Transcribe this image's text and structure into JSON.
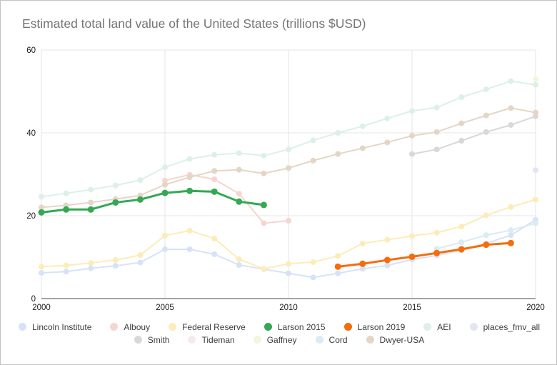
{
  "window": {
    "background": "#ffffff",
    "border_color": "#c4c4c4"
  },
  "chart_data": {
    "type": "line",
    "title": "Estimated total land value of the United States (trillions $USD)",
    "title_color": "#757575",
    "xlabel": "",
    "ylabel": "",
    "xlim": [
      2000,
      2020
    ],
    "ylim": [
      0,
      60
    ],
    "x_ticks": [
      "2000",
      "2005",
      "2010",
      "2015",
      "2020"
    ],
    "x_tick_values": [
      2000,
      2005,
      2010,
      2015,
      2020
    ],
    "y_ticks": [
      "0",
      "20",
      "40",
      "60"
    ],
    "y_tick_values": [
      0,
      20,
      40,
      60
    ],
    "grid": true,
    "grid_color": "#e6e6e6",
    "baseline_color": "#4a4a4a",
    "tick_label_color": "#1a1a1a",
    "legend_position": "bottom",
    "series": [
      {
        "name": "Lincoln Institute",
        "color": "#d7e2f8",
        "emphasis": false,
        "x": [
          2000,
          2001,
          2002,
          2003,
          2004,
          2005,
          2006,
          2007,
          2008,
          2009,
          2010,
          2011,
          2012,
          2013,
          2014,
          2015,
          2016,
          2017,
          2018,
          2019,
          2020
        ],
        "values": [
          6.2,
          6.5,
          7.3,
          7.9,
          8.7,
          11.9,
          11.9,
          10.7,
          8.1,
          7.1,
          6.1,
          5.1,
          6.1,
          7.2,
          8.0,
          9.4,
          10.4,
          11.7,
          13.3,
          15.3,
          19.0
        ]
      },
      {
        "name": "Albouy",
        "color": "#f6d5d0",
        "emphasis": false,
        "x": [
          2005,
          2006,
          2007,
          2008,
          2009,
          2010
        ],
        "values": [
          28.5,
          29.9,
          28.8,
          25.3,
          18.2,
          18.8
        ]
      },
      {
        "name": "Federal Reserve",
        "color": "#fcecb8",
        "emphasis": false,
        "x": [
          2000,
          2001,
          2002,
          2003,
          2004,
          2005,
          2006,
          2007,
          2008,
          2009,
          2010,
          2011,
          2012,
          2013,
          2014,
          2015,
          2016,
          2017,
          2018,
          2019,
          2020
        ],
        "values": [
          7.7,
          8.0,
          8.6,
          9.3,
          10.5,
          15.2,
          16.4,
          14.5,
          9.5,
          7.2,
          8.4,
          8.8,
          10.3,
          13.3,
          14.2,
          15.1,
          15.9,
          17.4,
          20.1,
          22.1,
          23.9
        ]
      },
      {
        "name": "Larson 2015",
        "color": "#34a853",
        "emphasis": true,
        "x": [
          2000,
          2001,
          2002,
          2003,
          2004,
          2005,
          2006,
          2007,
          2008,
          2009
        ],
        "values": [
          20.8,
          21.5,
          21.5,
          23.2,
          23.9,
          25.5,
          26.0,
          25.8,
          23.4,
          22.6
        ]
      },
      {
        "name": "Larson 2019",
        "color": "#f56c0a",
        "emphasis": true,
        "x": [
          2012,
          2013,
          2014,
          2015,
          2016,
          2017,
          2018,
          2019
        ],
        "values": [
          7.7,
          8.4,
          9.3,
          10.1,
          11.0,
          11.9,
          13.0,
          13.4
        ]
      },
      {
        "name": "AEI",
        "color": "#ddf0e8",
        "emphasis": false,
        "x": [
          2000,
          2001,
          2002,
          2003,
          2004,
          2005,
          2006,
          2007,
          2008,
          2009,
          2010,
          2011,
          2012,
          2013,
          2014,
          2015,
          2016,
          2017,
          2018,
          2019,
          2020
        ],
        "values": [
          24.6,
          25.4,
          26.3,
          27.3,
          28.6,
          31.7,
          33.7,
          34.7,
          35.1,
          34.5,
          36.0,
          38.2,
          40.0,
          41.6,
          43.5,
          45.3,
          46.1,
          48.6,
          50.5,
          52.5,
          51.6
        ]
      },
      {
        "name": "places_fmv_all",
        "color": "#e2e5f4",
        "emphasis": false,
        "x": [
          2020
        ],
        "values": [
          31.0
        ]
      },
      {
        "name": "Smith",
        "color": "#d8d8d8",
        "emphasis": false,
        "x": [
          2015,
          2016,
          2017,
          2018,
          2019,
          2020
        ],
        "values": [
          34.9,
          36.0,
          38.1,
          40.2,
          41.9,
          44.0
        ]
      },
      {
        "name": "Tideman",
        "color": "#f4eaee",
        "emphasis": false,
        "x": [],
        "values": []
      },
      {
        "name": "Gaffney",
        "color": "#f4f5dd",
        "emphasis": false,
        "x": [
          2020
        ],
        "values": [
          53.0
        ]
      },
      {
        "name": "Cord",
        "color": "#d9ebf3",
        "emphasis": false,
        "x": [
          2016,
          2017,
          2018,
          2019,
          2020
        ],
        "values": [
          12.0,
          13.6,
          15.3,
          16.5,
          18.2
        ]
      },
      {
        "name": "Dwyer-USA",
        "color": "#e4d6c5",
        "emphasis": false,
        "x": [
          2000,
          2001,
          2002,
          2003,
          2004,
          2005,
          2006,
          2007,
          2008,
          2009,
          2010,
          2011,
          2012,
          2013,
          2014,
          2015,
          2016,
          2017,
          2018,
          2019,
          2020
        ],
        "values": [
          22.0,
          22.5,
          23.2,
          24.0,
          24.9,
          27.5,
          29.3,
          30.8,
          31.1,
          30.2,
          31.5,
          33.3,
          34.9,
          36.3,
          37.7,
          39.3,
          40.2,
          42.3,
          44.2,
          46.0,
          44.9
        ]
      }
    ],
    "legend_rows": [
      [
        "Lincoln Institute",
        "Albouy",
        "Federal Reserve",
        "Larson 2015",
        "Larson 2019",
        "AEI",
        "places_fmv_all"
      ],
      [
        "Smith",
        "Tideman",
        "Gaffney",
        "Cord",
        "Dwyer-USA"
      ]
    ],
    "legend_text_color": "#3c3c3c"
  }
}
